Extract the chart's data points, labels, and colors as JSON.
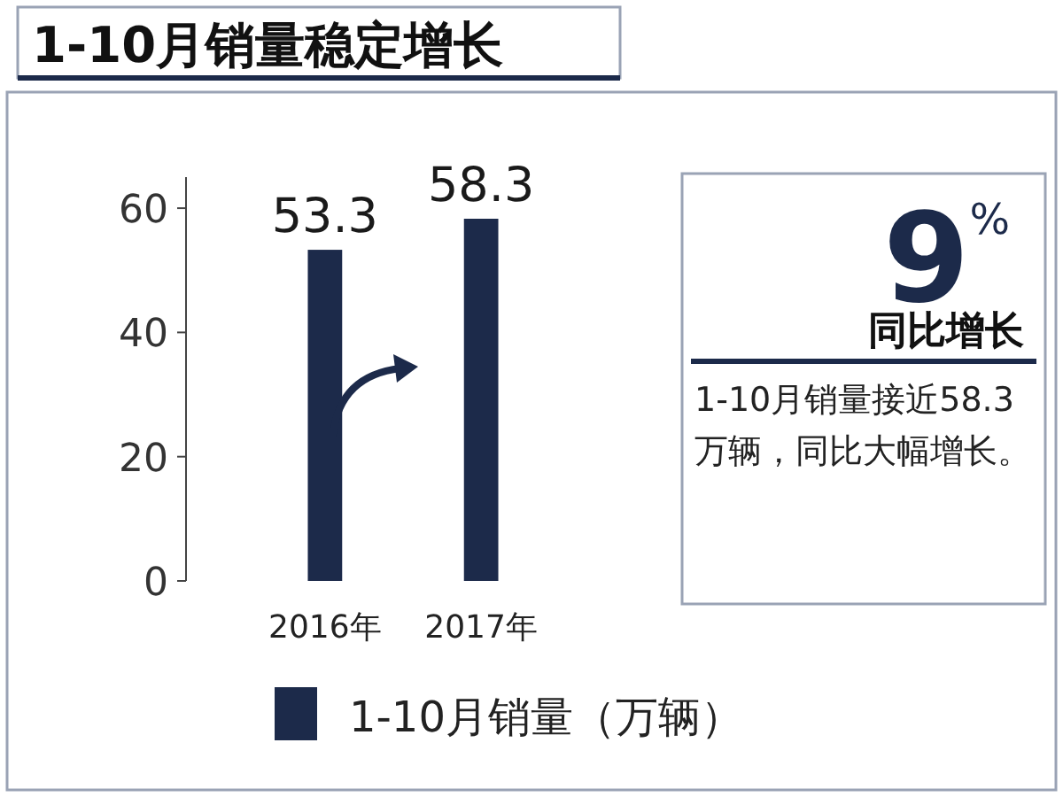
{
  "chart_data": [
    {
      "type": "bar",
      "title": "1-10月销量稳定增长",
      "categories": [
        "2016年",
        "2017年"
      ],
      "series": [
        {
          "name": "1-10月销量（万辆）",
          "color": "#1c2a4a",
          "values": [
            53.3,
            58.3
          ]
        }
      ],
      "ylim": [
        0,
        65
      ],
      "yticks": [
        0,
        20,
        40,
        60
      ],
      "data_labels": true,
      "legend": "bottom",
      "grid": false
    },
    {
      "type": "other",
      "title": "9%",
      "subtitle": "同比增长",
      "annotations": [
        "1-10月销量接近58.3万辆，同比大幅增长。"
      ]
    }
  ]
}
